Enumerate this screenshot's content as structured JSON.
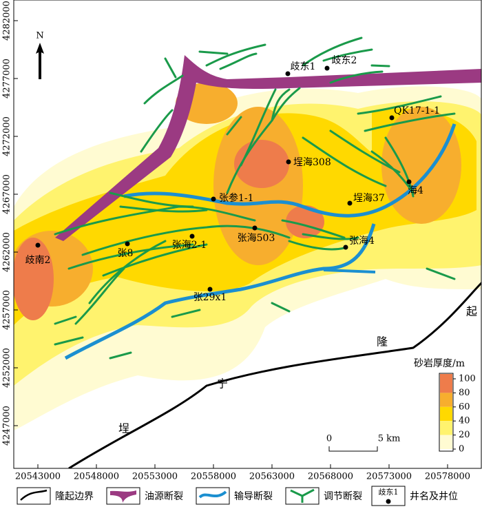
{
  "north": "N",
  "axes": {
    "x_ticks": [
      20543000,
      20548000,
      20553000,
      20558000,
      20563000,
      20568000,
      20573000,
      20578000
    ],
    "y_ticks": [
      4282000,
      4277000,
      4272000,
      4267000,
      4262000,
      4257000,
      4252000,
      4247000
    ]
  },
  "wells": [
    "歧东1",
    "歧东2",
    "QK17-1-1",
    "埕海308",
    "张参1-1",
    "埕海37",
    "海4",
    "张海503",
    "张海2-1",
    "张8",
    "歧南2",
    "张海4",
    "张29x1"
  ],
  "regions": [
    "埕",
    "宁",
    "隆",
    "起"
  ],
  "scale_bar": {
    "start": "0",
    "end": "5 km"
  },
  "colorbar": {
    "title": "砂岩厚度/m",
    "ticks": [
      100,
      80,
      60,
      40,
      20,
      0
    ]
  },
  "legend": {
    "items": [
      "隆起边界",
      "油源断裂",
      "输导断裂",
      "调节断裂"
    ],
    "well_example": "歧东1",
    "well_label": "井名及井位"
  }
}
